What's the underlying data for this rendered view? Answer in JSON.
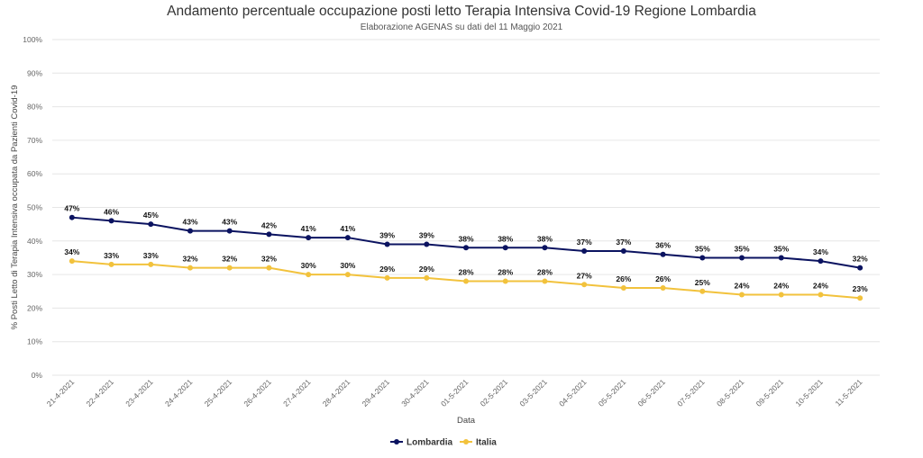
{
  "chart_data": {
    "type": "line",
    "title": "Andamento percentuale occupazione posti letto Terapia Intensiva Covid-19 Regione Lombardia",
    "subtitle": "Elaborazione AGENAS su dati del 11 Maggio 2021",
    "xlabel": "Data",
    "ylabel": "% Posti Letto di Terapia Intensiva occupata da Pazienti Covid-19",
    "ylim": [
      0,
      100
    ],
    "yticks": [
      "0%",
      "10%",
      "20%",
      "30%",
      "40%",
      "50%",
      "60%",
      "70%",
      "80%",
      "90%",
      "100%"
    ],
    "grid": true,
    "legend_position": "bottom-center",
    "categories": [
      "21-4-2021",
      "22-4-2021",
      "23-4-2021",
      "24-4-2021",
      "25-4-2021",
      "26-4-2021",
      "27-4-2021",
      "28-4-2021",
      "29-4-2021",
      "30-4-2021",
      "01-5-2021",
      "02-5-2021",
      "03-5-2021",
      "04-5-2021",
      "05-5-2021",
      "06-5-2021",
      "07-5-2021",
      "08-5-2021",
      "09-5-2021",
      "10-5-2021",
      "11-5-2021"
    ],
    "series": [
      {
        "name": "Lombardia",
        "color": "#0b1360",
        "values": [
          47,
          46,
          45,
          43,
          43,
          42,
          41,
          41,
          39,
          39,
          38,
          38,
          38,
          37,
          37,
          36,
          35,
          35,
          35,
          34,
          32
        ],
        "labels": [
          "47%",
          "46%",
          "45%",
          "43%",
          "43%",
          "42%",
          "41%",
          "41%",
          "39%",
          "39%",
          "38%",
          "38%",
          "38%",
          "37%",
          "37%",
          "36%",
          "35%",
          "35%",
          "35%",
          "34%",
          "32%"
        ]
      },
      {
        "name": "Italia",
        "color": "#f2c23c",
        "values": [
          34,
          33,
          33,
          32,
          32,
          32,
          30,
          30,
          29,
          29,
          28,
          28,
          28,
          27,
          26,
          26,
          25,
          24,
          24,
          24,
          23
        ],
        "labels": [
          "34%",
          "33%",
          "33%",
          "32%",
          "32%",
          "32%",
          "30%",
          "30%",
          "29%",
          "29%",
          "28%",
          "28%",
          "28%",
          "27%",
          "26%",
          "26%",
          "25%",
          "24%",
          "24%",
          "24%",
          "23%"
        ]
      }
    ]
  }
}
